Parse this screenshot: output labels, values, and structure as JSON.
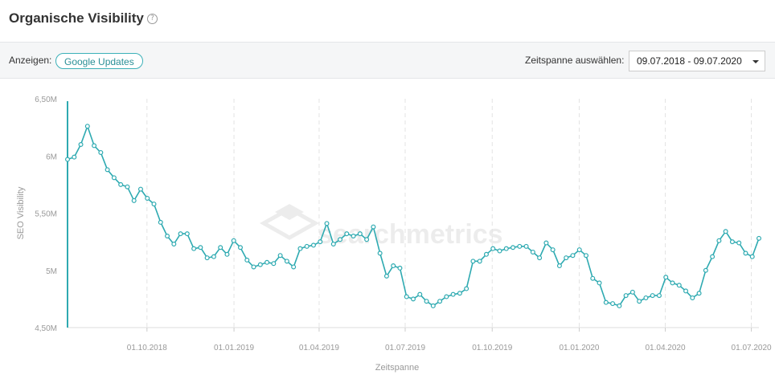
{
  "header": {
    "title": "Organische Visibility",
    "help_icon": "?"
  },
  "filter": {
    "show_label": "Anzeigen:",
    "google_updates_label": "Google Updates",
    "range_label": "Zeitspanne auswählen:",
    "range_value": "09.07.2018 - 09.07.2020"
  },
  "watermark": "searchmetrics",
  "colors": {
    "line": "#2eaab1",
    "marker_fill": "#ffffff",
    "accent": "#3bb0b8",
    "grid": "#e3e3e3",
    "tick_text": "#999999"
  },
  "chart_data": {
    "type": "line",
    "title": "",
    "xlabel": "Zeitspanne",
    "ylabel": "SEO Visibility",
    "ylim": [
      4.5,
      6.5
    ],
    "y_ticks": [
      {
        "value": 4.5,
        "label": "4,50M"
      },
      {
        "value": 5.0,
        "label": "5M"
      },
      {
        "value": 5.5,
        "label": "5,50M"
      },
      {
        "value": 6.0,
        "label": "6M"
      },
      {
        "value": 6.5,
        "label": "6,50M"
      }
    ],
    "x_start": "2018-07-09",
    "x_end": "2020-07-09",
    "x_ticks": [
      {
        "date": "2018-10-01",
        "label": "01.10.2018"
      },
      {
        "date": "2019-01-01",
        "label": "01.01.2019"
      },
      {
        "date": "2019-04-01",
        "label": "01.04.2019"
      },
      {
        "date": "2019-07-01",
        "label": "01.07.2019"
      },
      {
        "date": "2019-10-01",
        "label": "01.10.2019"
      },
      {
        "date": "2020-01-01",
        "label": "01.01.2020"
      },
      {
        "date": "2020-04-01",
        "label": "01.04.2020"
      },
      {
        "date": "2020-07-01",
        "label": "01.07.2020"
      }
    ],
    "highlight_date": "2018-07-09",
    "grid": true,
    "series": [
      {
        "values": [
          5.97,
          5.99,
          6.1,
          6.26,
          6.09,
          6.03,
          5.88,
          5.81,
          5.75,
          5.73,
          5.61,
          5.71,
          5.63,
          5.58,
          5.42,
          5.3,
          5.23,
          5.32,
          5.32,
          5.19,
          5.2,
          5.11,
          5.12,
          5.2,
          5.14,
          5.26,
          5.2,
          5.09,
          5.03,
          5.05,
          5.07,
          5.06,
          5.13,
          5.08,
          5.03,
          5.19,
          5.21,
          5.22,
          5.25,
          5.41,
          5.23,
          5.27,
          5.32,
          5.3,
          5.32,
          5.27,
          5.38,
          5.15,
          4.95,
          5.04,
          5.02,
          4.77,
          4.75,
          4.79,
          4.73,
          4.69,
          4.73,
          4.77,
          4.79,
          4.8,
          4.84,
          5.08,
          5.08,
          5.14,
          5.19,
          5.17,
          5.19,
          5.2,
          5.21,
          5.21,
          5.16,
          5.11,
          5.24,
          5.18,
          5.04,
          5.11,
          5.13,
          5.18,
          5.13,
          4.93,
          4.89,
          4.72,
          4.71,
          4.69,
          4.78,
          4.81,
          4.73,
          4.76,
          4.78,
          4.78,
          4.94,
          4.89,
          4.87,
          4.82,
          4.76,
          4.8,
          5.0,
          5.12,
          5.26,
          5.34,
          5.25,
          5.24,
          5.15,
          5.12,
          5.28
        ]
      }
    ]
  }
}
